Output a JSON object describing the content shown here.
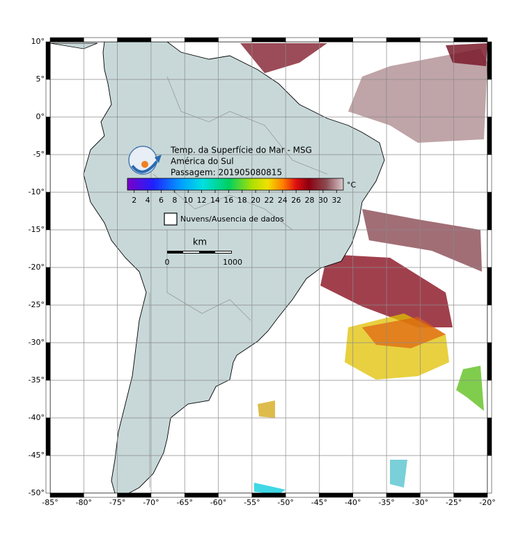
{
  "map": {
    "title": "Temp. da Superfície do Mar - MSG",
    "region": "América do Sul",
    "pass": "Passagem: 201905080815",
    "lat_ticks": [
      {
        "value": 10,
        "label": "10°"
      },
      {
        "value": 5,
        "label": "5°"
      },
      {
        "value": 0,
        "label": "0°"
      },
      {
        "value": -5,
        "label": "-5°"
      },
      {
        "value": -10,
        "label": "-10°"
      },
      {
        "value": -15,
        "label": "-15°"
      },
      {
        "value": -20,
        "label": "-20°"
      },
      {
        "value": -25,
        "label": "-25°"
      },
      {
        "value": -30,
        "label": "-30°"
      },
      {
        "value": -35,
        "label": "-35°"
      },
      {
        "value": -40,
        "label": "-40°"
      },
      {
        "value": -45,
        "label": "-45°"
      },
      {
        "value": -50,
        "label": "-50°"
      }
    ],
    "lon_ticks": [
      {
        "value": -85,
        "label": "-85°"
      },
      {
        "value": -80,
        "label": "-80°"
      },
      {
        "value": -75,
        "label": "-75°"
      },
      {
        "value": -70,
        "label": "-70°"
      },
      {
        "value": -65,
        "label": "-65°"
      },
      {
        "value": -60,
        "label": "-60°"
      },
      {
        "value": -55,
        "label": "-55°"
      },
      {
        "value": -50,
        "label": "-50°"
      },
      {
        "value": -45,
        "label": "-45°"
      },
      {
        "value": -40,
        "label": "-40°"
      },
      {
        "value": -35,
        "label": "-35°"
      },
      {
        "value": -30,
        "label": "-30°"
      },
      {
        "value": -25,
        "label": "-25°"
      },
      {
        "value": -20,
        "label": "-20°"
      }
    ],
    "colorbar": {
      "unit": "°C",
      "range": [
        1,
        33
      ],
      "ticks": [
        2,
        4,
        6,
        8,
        10,
        12,
        14,
        16,
        18,
        20,
        22,
        24,
        26,
        28,
        30,
        32
      ]
    },
    "legend": "Nuvens/Ausencia de dados",
    "scale": {
      "unit": "km",
      "labels": [
        "0",
        "1000"
      ]
    }
  }
}
